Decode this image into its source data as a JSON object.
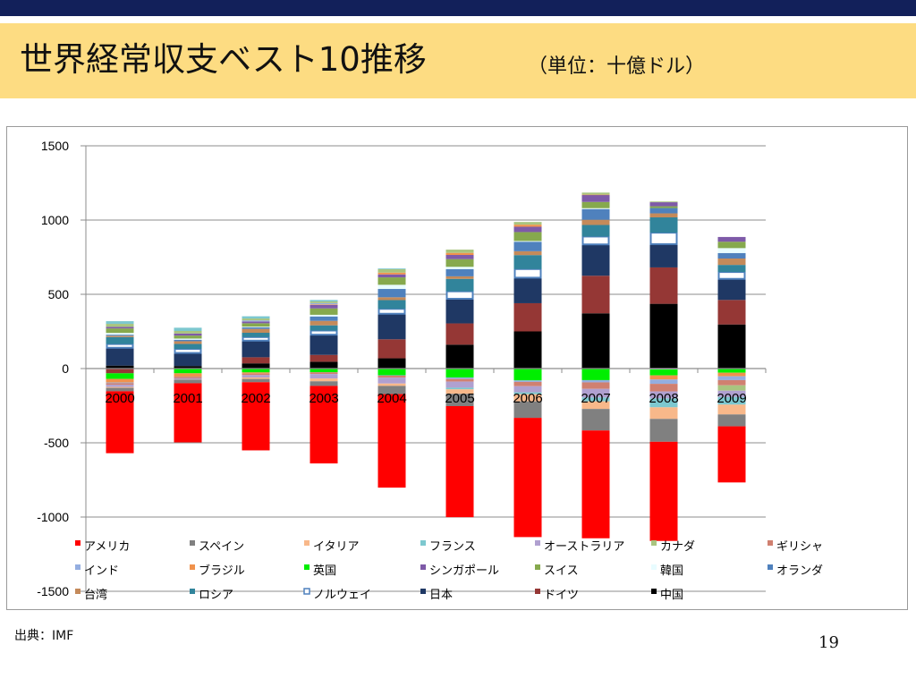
{
  "slide": {
    "title": "世界経常収支ベスト10推移",
    "unit": "（単位：十億ドル）",
    "source": "出典：IMF",
    "page_number": "19"
  },
  "chart_data": {
    "type": "bar",
    "stacked": true,
    "title": "",
    "xlabel": "",
    "ylabel": "",
    "ylim": [
      -1500,
      1500
    ],
    "yticks": [
      1500,
      1000,
      500,
      0,
      -500,
      -1000,
      -1500
    ],
    "categories": [
      "2000",
      "2001",
      "2002",
      "2003",
      "2004",
      "2005",
      "2006",
      "2007",
      "2008",
      "2009"
    ],
    "grid": true,
    "legend": {
      "placement": "bottom",
      "columns": 7
    },
    "series": [
      {
        "name": "アメリカ",
        "color": "#ff0000",
        "values": [
          -417,
          -398,
          -459,
          -522,
          -630,
          -748,
          -803,
          -726,
          -668,
          -378
        ]
      },
      {
        "name": "スペイン",
        "color": "#808080",
        "values": [
          -23,
          -24,
          -22,
          -31,
          -55,
          -83,
          -111,
          -145,
          -154,
          -80
        ]
      },
      {
        "name": "イタリア",
        "color": "#f8b88a",
        "values": [
          -6,
          -1,
          -10,
          -19,
          -16,
          -30,
          -48,
          -51,
          -78,
          -66
        ]
      },
      {
        "name": "フランス",
        "color": "#7dc8cf",
        "values": [
          18,
          22,
          15,
          10,
          5,
          -11,
          -13,
          -26,
          -60,
          -51
        ]
      },
      {
        "name": "オーストラリア",
        "color": "#b0a0d0",
        "values": [
          -15,
          -8,
          -16,
          -30,
          -40,
          -41,
          -41,
          -58,
          -47,
          -43
        ]
      },
      {
        "name": "カナダ",
        "color": "#a9c47f",
        "values": [
          20,
          17,
          13,
          11,
          23,
          22,
          18,
          14,
          5,
          -36
        ]
      },
      {
        "name": "ギリシャ",
        "color": "#d08070",
        "values": [
          -10,
          -10,
          -10,
          -12,
          -13,
          -18,
          -29,
          -44,
          -51,
          -35
        ]
      },
      {
        "name": "インド",
        "color": "#94aee0",
        "values": [
          -5,
          -1,
          7,
          9,
          -3,
          -10,
          -10,
          -15,
          -29,
          -26
        ]
      },
      {
        "name": "ブラジル",
        "color": "#f0924c",
        "values": [
          -24,
          -23,
          -8,
          4,
          12,
          14,
          14,
          2,
          -28,
          -24
        ]
      },
      {
        "name": "英国",
        "color": "#00ee00",
        "values": [
          -38,
          -32,
          -26,
          -25,
          -45,
          -60,
          -80,
          -78,
          -40,
          -28
        ]
      },
      {
        "name": "シンガポール",
        "color": "#7e5aa8",
        "values": [
          11,
          14,
          12,
          23,
          20,
          28,
          36,
          47,
          27,
          32
        ]
      },
      {
        "name": "スイス",
        "color": "#86a94d",
        "values": [
          30,
          20,
          23,
          43,
          50,
          52,
          60,
          42,
          12,
          43
        ]
      },
      {
        "name": "韓国",
        "color": "#e8fcff",
        "values": [
          12,
          8,
          5,
          11,
          28,
          15,
          5,
          6,
          -6,
          33
        ]
      },
      {
        "name": "オランダ",
        "color": "#4f81bd",
        "values": [
          7,
          10,
          10,
          30,
          56,
          49,
          64,
          72,
          36,
          37
        ]
      },
      {
        "name": "台湾",
        "color": "#c48a5a",
        "values": [
          9,
          18,
          26,
          30,
          19,
          17,
          26,
          35,
          27,
          43
        ]
      },
      {
        "name": "ロシア",
        "color": "#31849b",
        "values": [
          47,
          34,
          29,
          35,
          59,
          84,
          94,
          78,
          103,
          48
        ]
      },
      {
        "name": "ノルウェイ",
        "color": "#ffffff",
        "values": [
          25,
          27,
          24,
          28,
          33,
          50,
          58,
          53,
          77,
          46
        ]
      },
      {
        "name": "日本",
        "color": "#1f3864",
        "values": [
          120,
          88,
          112,
          136,
          172,
          166,
          172,
          211,
          157,
          142
        ]
      },
      {
        "name": "ドイツ",
        "color": "#953735",
        "values": [
          -32,
          0,
          41,
          46,
          128,
          143,
          190,
          253,
          245,
          165
        ]
      },
      {
        "name": "中国",
        "color": "#000000",
        "values": [
          20,
          17,
          35,
          46,
          69,
          161,
          250,
          372,
          436,
          297
        ]
      }
    ]
  }
}
